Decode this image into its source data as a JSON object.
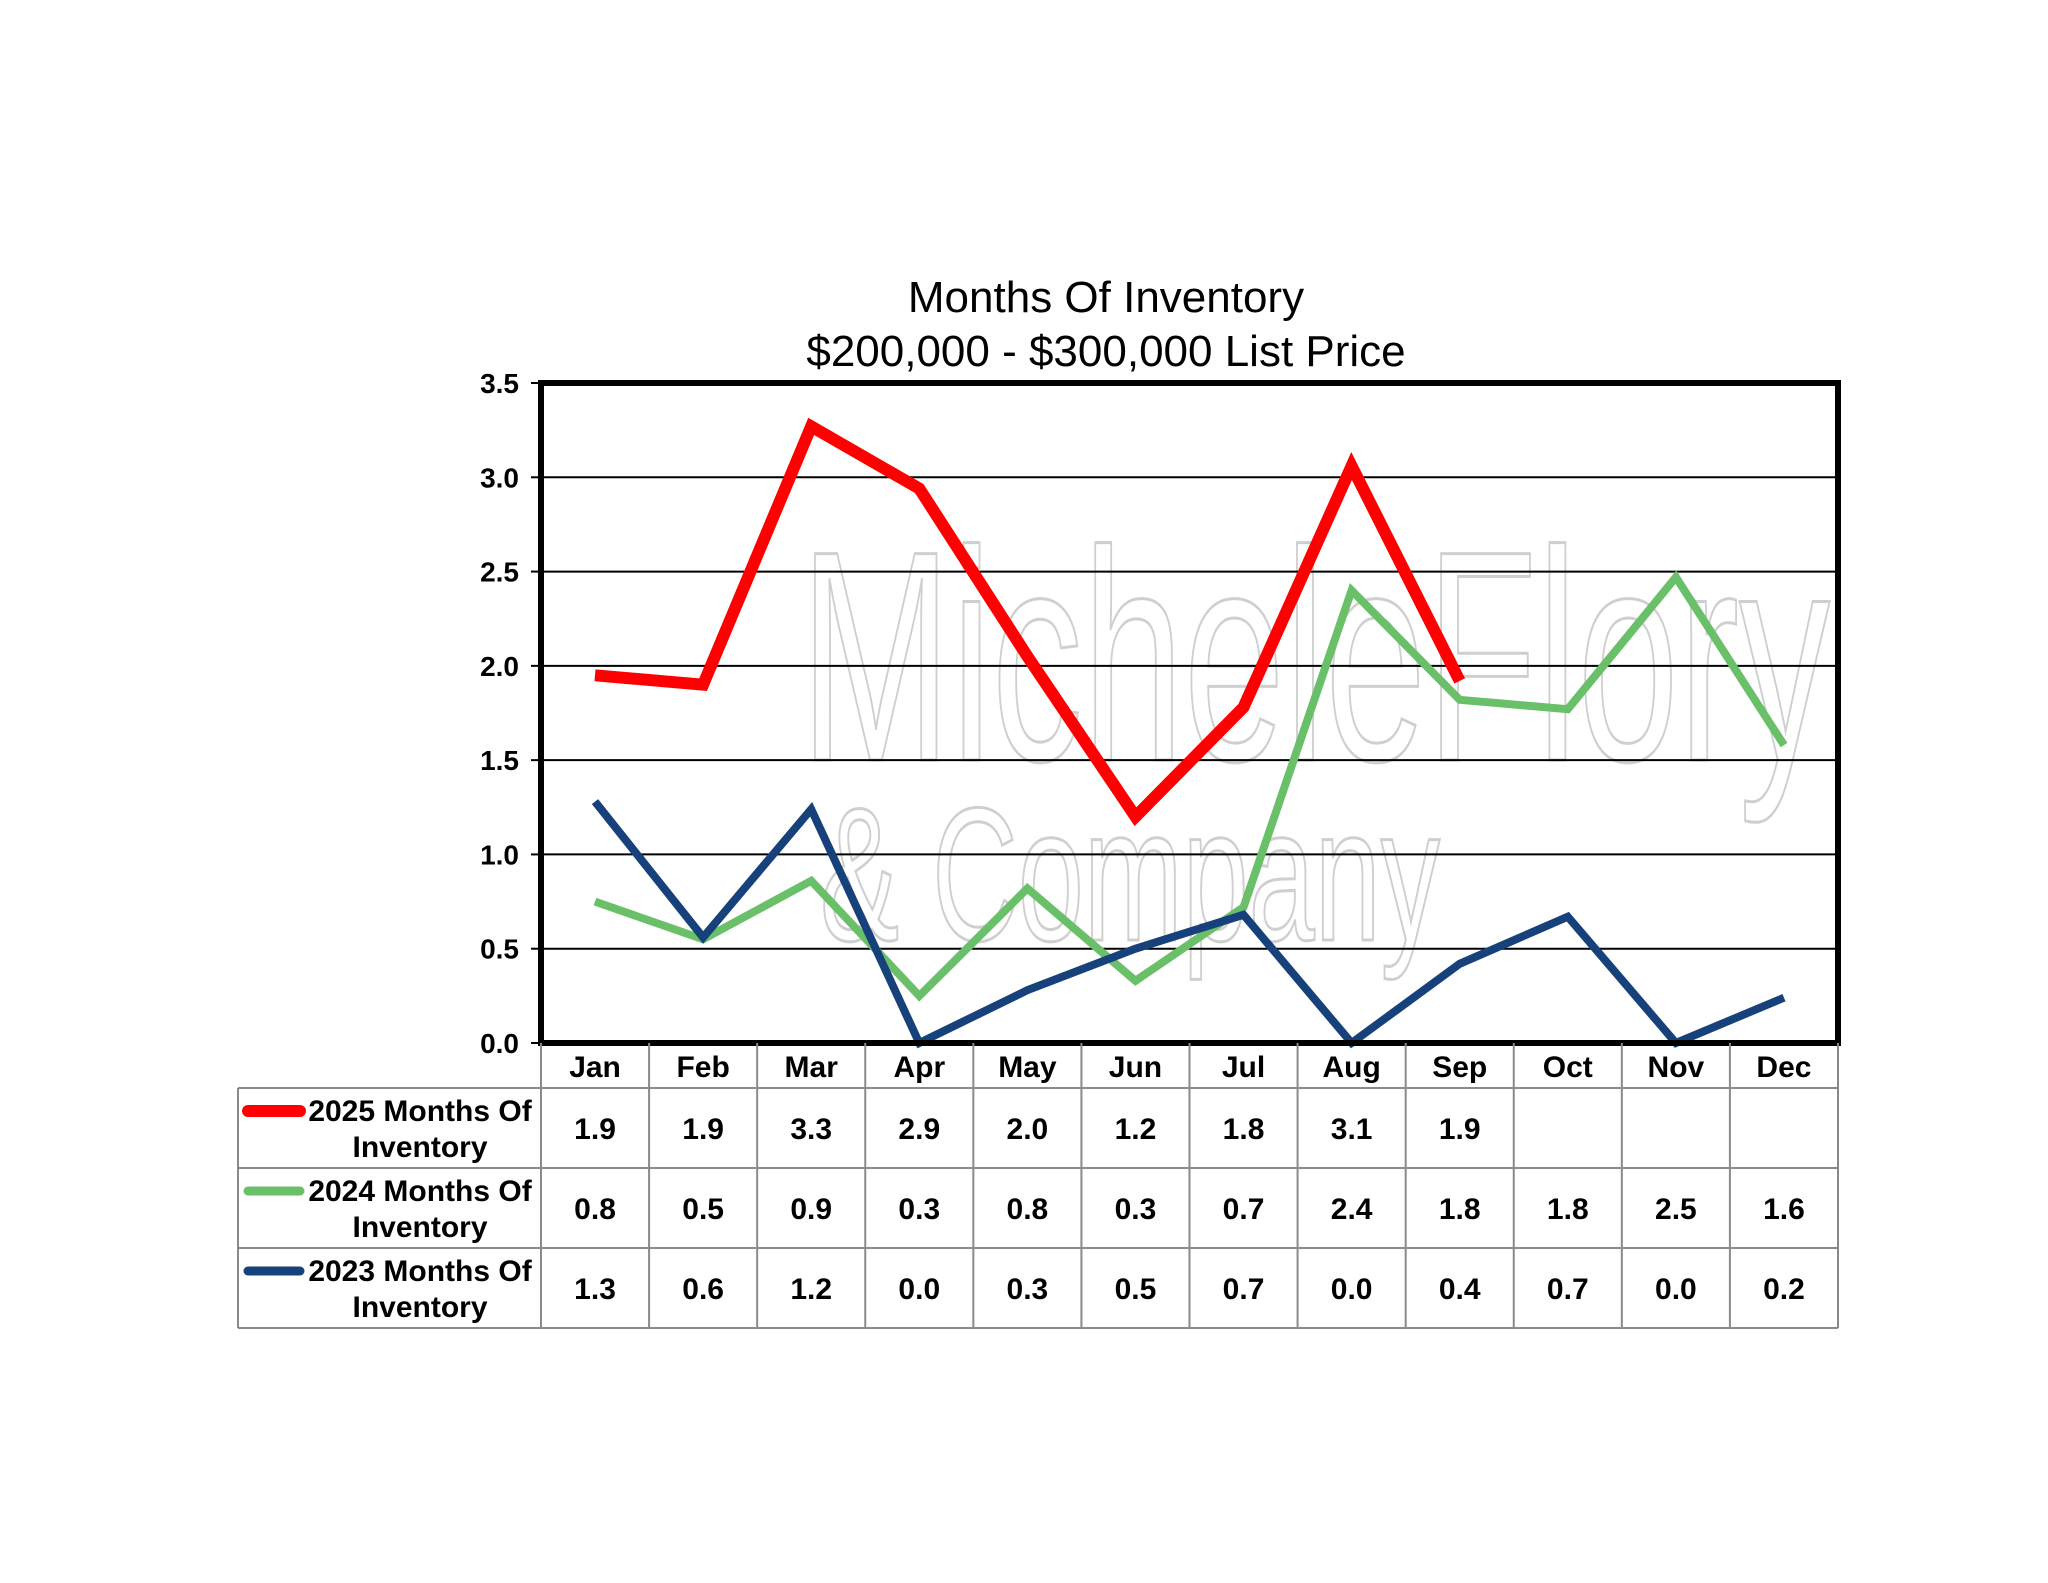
{
  "chart_data": {
    "type": "line",
    "title": "Months Of Inventory",
    "subtitle": "$200,000 - $300,000 List Price",
    "categories": [
      "Jan",
      "Feb",
      "Mar",
      "Apr",
      "May",
      "Jun",
      "Jul",
      "Aug",
      "Sep",
      "Oct",
      "Nov",
      "Dec"
    ],
    "ylim": [
      0,
      3.5
    ],
    "yticks": [
      "0.0",
      "0.5",
      "1.0",
      "1.5",
      "2.0",
      "2.5",
      "3.0",
      "3.5"
    ],
    "grid": true,
    "legend_position": "data-table-left",
    "series": [
      {
        "name": "2025 Months Of Inventory",
        "color": "#ff0000",
        "values": [
          1.95,
          1.9,
          3.27,
          2.94,
          2.05,
          1.2,
          1.78,
          3.06,
          1.92,
          null,
          null,
          null
        ],
        "labels": [
          "1.9",
          "1.9",
          "3.3",
          "2.9",
          "2.0",
          "1.2",
          "1.8",
          "3.1",
          "1.9",
          "",
          "",
          ""
        ]
      },
      {
        "name": "2024 Months Of Inventory",
        "color": "#6abf69",
        "values": [
          0.75,
          0.55,
          0.86,
          0.25,
          0.82,
          0.33,
          0.72,
          2.4,
          1.82,
          1.77,
          2.47,
          1.58
        ],
        "labels": [
          "0.8",
          "0.5",
          "0.9",
          "0.3",
          "0.8",
          "0.3",
          "0.7",
          "2.4",
          "1.8",
          "1.8",
          "2.5",
          "1.6"
        ]
      },
      {
        "name": "2023 Months Of Inventory",
        "color": "#17417a",
        "values": [
          1.28,
          0.56,
          1.24,
          0.0,
          0.28,
          0.5,
          0.68,
          0.0,
          0.42,
          0.67,
          0.0,
          0.24
        ],
        "labels": [
          "1.3",
          "0.6",
          "1.2",
          "0.0",
          "0.3",
          "0.5",
          "0.7",
          "0.0",
          "0.4",
          "0.7",
          "0.0",
          "0.2"
        ]
      }
    ]
  },
  "watermark": {
    "line1": "MicheleFlory",
    "line2": "& Company",
    "color": "#cfcfcf"
  }
}
